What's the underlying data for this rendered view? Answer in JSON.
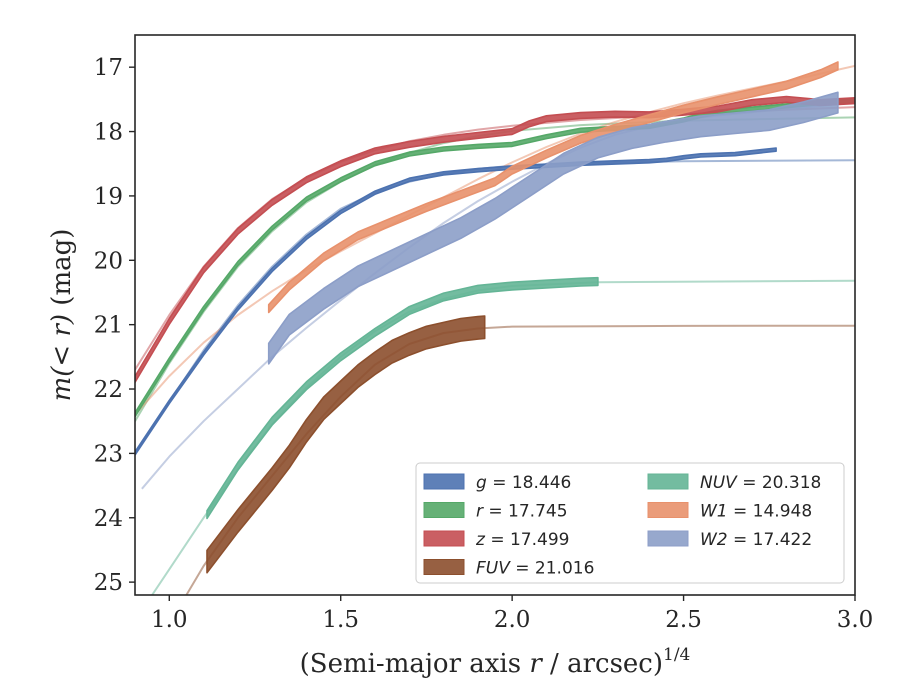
{
  "chart_data": {
    "type": "line",
    "xlabel_main": "(Semi-major axis ",
    "xlabel_var": "r",
    "xlabel_unit": " / arcsec)",
    "xlabel_exp": "1/4",
    "ylabel_main": "m(< r)",
    "ylabel_unit": " (mag)",
    "xlim": [
      0.9,
      3.0
    ],
    "ylim": [
      25.2,
      16.5
    ],
    "y_inverted": true,
    "grid": false,
    "legend_position": "lower-right",
    "xticks": [
      "1.0",
      "1.5",
      "2.0",
      "2.5",
      "3.0"
    ],
    "yticks": [
      "17",
      "18",
      "19",
      "20",
      "21",
      "22",
      "23",
      "24",
      "25"
    ],
    "series": [
      {
        "name": "g",
        "legend_label": "g = 18.446",
        "color": "#4c72b0",
        "width": 0.05,
        "data": [
          [
            0.9,
            23.0
          ],
          [
            1.0,
            22.2
          ],
          [
            1.1,
            21.45
          ],
          [
            1.2,
            20.75
          ],
          [
            1.3,
            20.15
          ],
          [
            1.4,
            19.65
          ],
          [
            1.5,
            19.25
          ],
          [
            1.6,
            18.95
          ],
          [
            1.7,
            18.75
          ],
          [
            1.8,
            18.65
          ],
          [
            1.9,
            18.6
          ],
          [
            2.0,
            18.56
          ],
          [
            2.1,
            18.53
          ],
          [
            2.2,
            18.5
          ],
          [
            2.3,
            18.48
          ],
          [
            2.4,
            18.46
          ],
          [
            2.45,
            18.44
          ],
          [
            2.5,
            18.4
          ],
          [
            2.55,
            18.37
          ],
          [
            2.65,
            18.35
          ],
          [
            2.77,
            18.28
          ]
        ],
        "model": [
          [
            0.9,
            23.0
          ],
          [
            1.0,
            22.2
          ],
          [
            1.1,
            21.4
          ],
          [
            1.2,
            20.7
          ],
          [
            1.3,
            20.1
          ],
          [
            1.4,
            19.6
          ],
          [
            1.5,
            19.2
          ],
          [
            1.6,
            18.95
          ],
          [
            1.7,
            18.78
          ],
          [
            1.8,
            18.66
          ],
          [
            1.9,
            18.58
          ],
          [
            2.0,
            18.53
          ],
          [
            2.2,
            18.49
          ],
          [
            2.5,
            18.46
          ],
          [
            3.0,
            18.446
          ]
        ]
      },
      {
        "name": "r",
        "legend_label": "r = 17.745",
        "color": "#55a868",
        "width": 0.06,
        "data": [
          [
            0.9,
            22.4
          ],
          [
            1.0,
            21.55
          ],
          [
            1.1,
            20.75
          ],
          [
            1.2,
            20.05
          ],
          [
            1.3,
            19.5
          ],
          [
            1.4,
            19.05
          ],
          [
            1.5,
            18.75
          ],
          [
            1.6,
            18.5
          ],
          [
            1.7,
            18.35
          ],
          [
            1.8,
            18.27
          ],
          [
            1.9,
            18.23
          ],
          [
            2.0,
            18.2
          ],
          [
            2.1,
            18.08
          ],
          [
            2.2,
            17.98
          ],
          [
            2.3,
            17.95
          ],
          [
            2.4,
            17.92
          ],
          [
            2.5,
            17.82
          ],
          [
            2.55,
            17.75
          ],
          [
            2.6,
            17.7
          ],
          [
            2.7,
            17.65
          ],
          [
            2.8,
            17.6
          ],
          [
            2.9,
            17.55
          ],
          [
            3.0,
            17.52
          ]
        ],
        "model": [
          [
            0.9,
            22.5
          ],
          [
            1.0,
            21.6
          ],
          [
            1.1,
            20.8
          ],
          [
            1.2,
            20.1
          ],
          [
            1.3,
            19.55
          ],
          [
            1.4,
            19.1
          ],
          [
            1.5,
            18.78
          ],
          [
            1.6,
            18.52
          ],
          [
            1.7,
            18.33
          ],
          [
            1.8,
            18.18
          ],
          [
            1.9,
            18.07
          ],
          [
            2.0,
            17.99
          ],
          [
            2.2,
            17.9
          ],
          [
            2.5,
            17.83
          ],
          [
            3.0,
            17.78
          ]
        ]
      },
      {
        "name": "z",
        "legend_label": "z = 17.499",
        "color": "#c44e52",
        "width": 0.09,
        "data": [
          [
            0.9,
            21.85
          ],
          [
            1.0,
            20.95
          ],
          [
            1.1,
            20.15
          ],
          [
            1.2,
            19.55
          ],
          [
            1.3,
            19.1
          ],
          [
            1.4,
            18.75
          ],
          [
            1.5,
            18.5
          ],
          [
            1.6,
            18.3
          ],
          [
            1.7,
            18.2
          ],
          [
            1.8,
            18.12
          ],
          [
            1.9,
            18.06
          ],
          [
            2.0,
            18.0
          ],
          [
            2.05,
            17.88
          ],
          [
            2.1,
            17.8
          ],
          [
            2.2,
            17.75
          ],
          [
            2.3,
            17.73
          ],
          [
            2.4,
            17.74
          ],
          [
            2.5,
            17.7
          ],
          [
            2.6,
            17.65
          ],
          [
            2.7,
            17.55
          ],
          [
            2.8,
            17.5
          ],
          [
            2.9,
            17.55
          ],
          [
            3.0,
            17.52
          ]
        ],
        "model": [
          [
            0.9,
            21.7
          ],
          [
            1.0,
            20.85
          ],
          [
            1.1,
            20.1
          ],
          [
            1.2,
            19.5
          ],
          [
            1.3,
            19.05
          ],
          [
            1.4,
            18.72
          ],
          [
            1.5,
            18.47
          ],
          [
            1.6,
            18.29
          ],
          [
            1.7,
            18.15
          ],
          [
            1.8,
            18.05
          ],
          [
            1.9,
            17.97
          ],
          [
            2.0,
            17.91
          ],
          [
            2.2,
            17.82
          ],
          [
            2.5,
            17.73
          ],
          [
            2.8,
            17.66
          ],
          [
            3.0,
            17.62
          ]
        ]
      },
      {
        "name": "FUV",
        "legend_label": "FUV = 21.016",
        "color": "#8c4f2d",
        "width": 0.35,
        "data": [
          [
            1.11,
            24.68
          ],
          [
            1.2,
            24.05
          ],
          [
            1.3,
            23.4
          ],
          [
            1.35,
            23.05
          ],
          [
            1.4,
            22.65
          ],
          [
            1.45,
            22.3
          ],
          [
            1.5,
            22.05
          ],
          [
            1.55,
            21.8
          ],
          [
            1.6,
            21.6
          ],
          [
            1.65,
            21.42
          ],
          [
            1.7,
            21.3
          ],
          [
            1.75,
            21.2
          ],
          [
            1.8,
            21.14
          ],
          [
            1.85,
            21.08
          ],
          [
            1.9,
            21.05
          ],
          [
            1.92,
            21.04
          ]
        ],
        "model": [
          [
            1.05,
            25.2
          ],
          [
            1.1,
            24.75
          ],
          [
            1.2,
            24.0
          ],
          [
            1.3,
            23.35
          ],
          [
            1.4,
            22.7
          ],
          [
            1.5,
            22.12
          ],
          [
            1.6,
            21.62
          ],
          [
            1.7,
            21.3
          ],
          [
            1.8,
            21.13
          ],
          [
            1.9,
            21.06
          ],
          [
            2.0,
            21.03
          ],
          [
            2.5,
            21.02
          ],
          [
            3.0,
            21.016
          ]
        ]
      },
      {
        "name": "NUV",
        "legend_label": "NUV = 20.318",
        "color": "#64b596",
        "width": 0.12,
        "data": [
          [
            1.11,
            23.95
          ],
          [
            1.2,
            23.2
          ],
          [
            1.3,
            22.5
          ],
          [
            1.4,
            21.95
          ],
          [
            1.5,
            21.5
          ],
          [
            1.6,
            21.12
          ],
          [
            1.7,
            20.78
          ],
          [
            1.8,
            20.57
          ],
          [
            1.9,
            20.45
          ],
          [
            2.0,
            20.4
          ],
          [
            2.1,
            20.37
          ],
          [
            2.2,
            20.34
          ],
          [
            2.25,
            20.33
          ]
        ],
        "model": [
          [
            0.95,
            25.2
          ],
          [
            1.0,
            24.8
          ],
          [
            1.1,
            24.0
          ],
          [
            1.2,
            23.25
          ],
          [
            1.3,
            22.55
          ],
          [
            1.4,
            21.98
          ],
          [
            1.5,
            21.5
          ],
          [
            1.6,
            21.1
          ],
          [
            1.7,
            20.8
          ],
          [
            1.8,
            20.6
          ],
          [
            1.9,
            20.47
          ],
          [
            2.0,
            20.4
          ],
          [
            2.25,
            20.34
          ],
          [
            3.0,
            20.318
          ]
        ]
      },
      {
        "name": "W1",
        "legend_label": "W1 = 14.948",
        "color": "#e8916c",
        "width": 0.12,
        "data": [
          [
            1.29,
            20.75
          ],
          [
            1.35,
            20.4
          ],
          [
            1.45,
            19.95
          ],
          [
            1.55,
            19.62
          ],
          [
            1.65,
            19.4
          ],
          [
            1.75,
            19.18
          ],
          [
            1.85,
            18.98
          ],
          [
            1.95,
            18.78
          ],
          [
            2.0,
            18.6
          ],
          [
            2.1,
            18.35
          ],
          [
            2.2,
            18.12
          ],
          [
            2.3,
            17.95
          ],
          [
            2.4,
            17.8
          ],
          [
            2.5,
            17.65
          ],
          [
            2.6,
            17.52
          ],
          [
            2.7,
            17.4
          ],
          [
            2.8,
            17.28
          ],
          [
            2.9,
            17.1
          ],
          [
            2.95,
            16.98
          ]
        ],
        "model": [
          [
            0.9,
            22.4
          ],
          [
            1.0,
            21.8
          ],
          [
            1.1,
            21.28
          ],
          [
            1.2,
            20.85
          ],
          [
            1.3,
            20.48
          ],
          [
            1.4,
            20.15
          ],
          [
            1.5,
            19.86
          ],
          [
            1.6,
            19.58
          ],
          [
            1.7,
            19.3
          ],
          [
            1.8,
            19.02
          ],
          [
            1.9,
            18.74
          ],
          [
            2.0,
            18.48
          ],
          [
            2.1,
            18.24
          ],
          [
            2.2,
            18.03
          ],
          [
            2.3,
            17.85
          ],
          [
            2.4,
            17.7
          ],
          [
            2.5,
            17.56
          ],
          [
            2.6,
            17.44
          ],
          [
            2.7,
            17.33
          ],
          [
            2.8,
            17.22
          ],
          [
            2.9,
            17.1
          ],
          [
            3.0,
            16.98
          ]
        ]
      },
      {
        "name": "W2",
        "legend_label": "W2 = 17.422",
        "color": "#8c9ec8",
        "width": 0.32,
        "data": [
          [
            1.29,
            21.45
          ],
          [
            1.35,
            21.0
          ],
          [
            1.45,
            20.6
          ],
          [
            1.55,
            20.25
          ],
          [
            1.65,
            20.0
          ],
          [
            1.75,
            19.75
          ],
          [
            1.85,
            19.5
          ],
          [
            1.95,
            19.2
          ],
          [
            2.05,
            18.85
          ],
          [
            2.15,
            18.5
          ],
          [
            2.25,
            18.25
          ],
          [
            2.35,
            18.1
          ],
          [
            2.45,
            18.0
          ],
          [
            2.55,
            17.92
          ],
          [
            2.65,
            17.87
          ],
          [
            2.75,
            17.82
          ],
          [
            2.85,
            17.7
          ],
          [
            2.95,
            17.55
          ]
        ],
        "model": [
          [
            0.92,
            23.55
          ],
          [
            1.0,
            23.05
          ],
          [
            1.1,
            22.5
          ],
          [
            1.2,
            22.0
          ],
          [
            1.3,
            21.5
          ],
          [
            1.4,
            21.05
          ],
          [
            1.5,
            20.62
          ],
          [
            1.6,
            20.2
          ],
          [
            1.7,
            19.8
          ],
          [
            1.8,
            19.42
          ],
          [
            1.9,
            19.08
          ],
          [
            2.0,
            18.78
          ],
          [
            2.1,
            18.5
          ],
          [
            2.2,
            18.25
          ],
          [
            2.3,
            18.05
          ],
          [
            2.4,
            17.92
          ],
          [
            2.5,
            17.82
          ],
          [
            2.6,
            17.75
          ],
          [
            2.7,
            17.7
          ],
          [
            2.8,
            17.65
          ],
          [
            2.9,
            17.6
          ],
          [
            3.0,
            17.55
          ]
        ]
      }
    ]
  }
}
